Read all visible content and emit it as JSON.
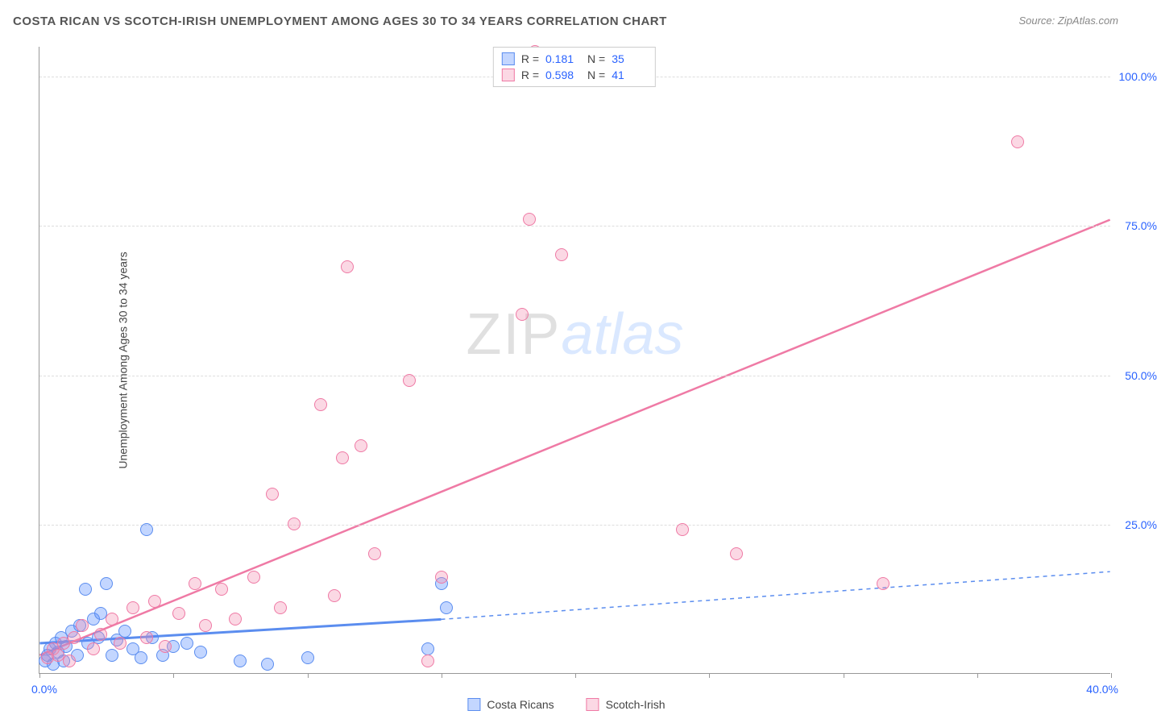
{
  "title": "COSTA RICAN VS SCOTCH-IRISH UNEMPLOYMENT AMONG AGES 30 TO 34 YEARS CORRELATION CHART",
  "source": "Source: ZipAtlas.com",
  "ylabel": "Unemployment Among Ages 30 to 34 years",
  "watermark_zip": "ZIP",
  "watermark_atlas": "atlas",
  "chart": {
    "type": "scatter",
    "xlim": [
      0,
      40
    ],
    "ylim": [
      0,
      105
    ],
    "x_tick_step": 5,
    "x_label_min": "0.0%",
    "x_label_max": "40.0%",
    "y_ticks": [
      25,
      50,
      75,
      100
    ],
    "y_tick_labels": [
      "25.0%",
      "50.0%",
      "75.0%",
      "100.0%"
    ],
    "grid_color": "#dddddd",
    "axis_line_color": "#999999",
    "background_color": "#ffffff",
    "point_radius": 8,
    "series": [
      {
        "name": "Costa Ricans",
        "color_fill": "rgba(82,138,255,0.35)",
        "color_stroke": "#5b8def",
        "R": "0.181",
        "N": "35",
        "trend": {
          "x0": 0,
          "y0": 5,
          "x1": 15,
          "y1": 9,
          "extend_to_x": 40,
          "extend_y": 17,
          "width": 3,
          "dash_extend": "5,5"
        },
        "points": [
          [
            0.2,
            2
          ],
          [
            0.3,
            3
          ],
          [
            0.4,
            4
          ],
          [
            0.5,
            1.5
          ],
          [
            0.6,
            5
          ],
          [
            0.7,
            3.5
          ],
          [
            0.8,
            6
          ],
          [
            0.9,
            2
          ],
          [
            1.0,
            4.5
          ],
          [
            1.2,
            7
          ],
          [
            1.4,
            3
          ],
          [
            1.5,
            8
          ],
          [
            1.7,
            14
          ],
          [
            1.8,
            5
          ],
          [
            2.0,
            9
          ],
          [
            2.2,
            6
          ],
          [
            2.3,
            10
          ],
          [
            2.5,
            15
          ],
          [
            2.7,
            3
          ],
          [
            2.9,
            5.5
          ],
          [
            3.2,
            7
          ],
          [
            3.5,
            4
          ],
          [
            3.8,
            2.5
          ],
          [
            4.0,
            24
          ],
          [
            4.2,
            6
          ],
          [
            4.6,
            3
          ],
          [
            5.0,
            4.5
          ],
          [
            5.5,
            5
          ],
          [
            6.0,
            3.5
          ],
          [
            7.5,
            2
          ],
          [
            8.5,
            1.5
          ],
          [
            10.0,
            2.5
          ],
          [
            14.5,
            4
          ],
          [
            15.0,
            15
          ],
          [
            15.2,
            11
          ]
        ]
      },
      {
        "name": "Scotch-Irish",
        "color_fill": "rgba(244,143,177,0.35)",
        "color_stroke": "#ef7aa5",
        "R": "0.598",
        "N": "41",
        "trend": {
          "x0": 0,
          "y0": 3,
          "x1": 40,
          "y1": 76,
          "width": 2.5
        },
        "points": [
          [
            0.3,
            2.5
          ],
          [
            0.5,
            4
          ],
          [
            0.7,
            3
          ],
          [
            0.9,
            5
          ],
          [
            1.1,
            2
          ],
          [
            1.3,
            6
          ],
          [
            1.6,
            8
          ],
          [
            2.0,
            4
          ],
          [
            2.3,
            6.5
          ],
          [
            2.7,
            9
          ],
          [
            3.0,
            5
          ],
          [
            3.5,
            11
          ],
          [
            4.0,
            6
          ],
          [
            4.3,
            12
          ],
          [
            4.7,
            4.5
          ],
          [
            5.2,
            10
          ],
          [
            5.8,
            15
          ],
          [
            6.2,
            8
          ],
          [
            6.8,
            14
          ],
          [
            7.3,
            9
          ],
          [
            8.0,
            16
          ],
          [
            8.7,
            30
          ],
          [
            9.0,
            11
          ],
          [
            9.5,
            25
          ],
          [
            10.5,
            45
          ],
          [
            11.0,
            13
          ],
          [
            11.3,
            36
          ],
          [
            11.5,
            68
          ],
          [
            12.0,
            38
          ],
          [
            12.5,
            20
          ],
          [
            13.8,
            49
          ],
          [
            14.5,
            2
          ],
          [
            15.0,
            16
          ],
          [
            18.0,
            60
          ],
          [
            18.3,
            76
          ],
          [
            18.5,
            104
          ],
          [
            19.5,
            70
          ],
          [
            24.0,
            24
          ],
          [
            26.0,
            20
          ],
          [
            31.5,
            15
          ],
          [
            36.5,
            89
          ]
        ]
      }
    ]
  },
  "stats_box": {
    "rows": [
      {
        "swatch_fill": "rgba(82,138,255,0.35)",
        "swatch_stroke": "#5b8def",
        "R": "0.181",
        "N": "35"
      },
      {
        "swatch_fill": "rgba(244,143,177,0.35)",
        "swatch_stroke": "#ef7aa5",
        "R": "0.598",
        "N": "41"
      }
    ],
    "R_label": "R =",
    "N_label": "N ="
  },
  "legend": [
    {
      "swatch_fill": "rgba(82,138,255,0.35)",
      "swatch_stroke": "#5b8def",
      "label": "Costa Ricans"
    },
    {
      "swatch_fill": "rgba(244,143,177,0.35)",
      "swatch_stroke": "#ef7aa5",
      "label": "Scotch-Irish"
    }
  ]
}
